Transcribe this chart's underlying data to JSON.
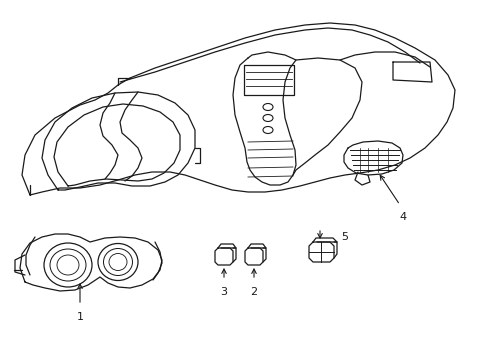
{
  "background_color": "#ffffff",
  "line_color": "#1a1a1a",
  "lw": 0.9,
  "label_fontsize": 8,
  "figsize": [
    4.89,
    3.6
  ],
  "dpi": 100
}
